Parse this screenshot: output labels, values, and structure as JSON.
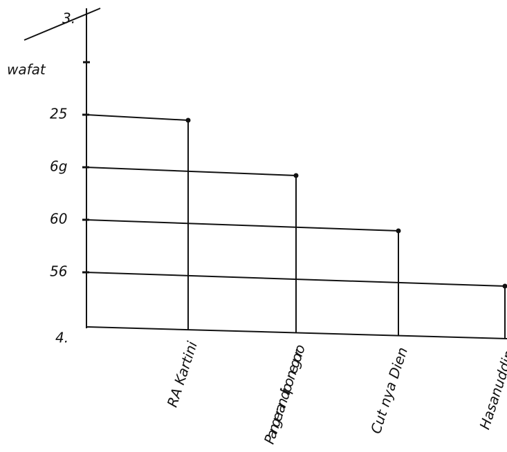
{
  "chart_data": {
    "type": "bar",
    "ylabel": "wafat",
    "annotations": [
      "3.",
      "4."
    ],
    "categories": [
      "RA Kartini",
      "Pangeran dipo negoro",
      "Cut nya Dien",
      "Hasanuddin"
    ],
    "values": [
      25,
      69,
      60,
      56
    ],
    "yticks": [
      25,
      {
        "value": 69,
        "label": "6g"
      },
      60,
      56
    ],
    "color": "#111111"
  }
}
